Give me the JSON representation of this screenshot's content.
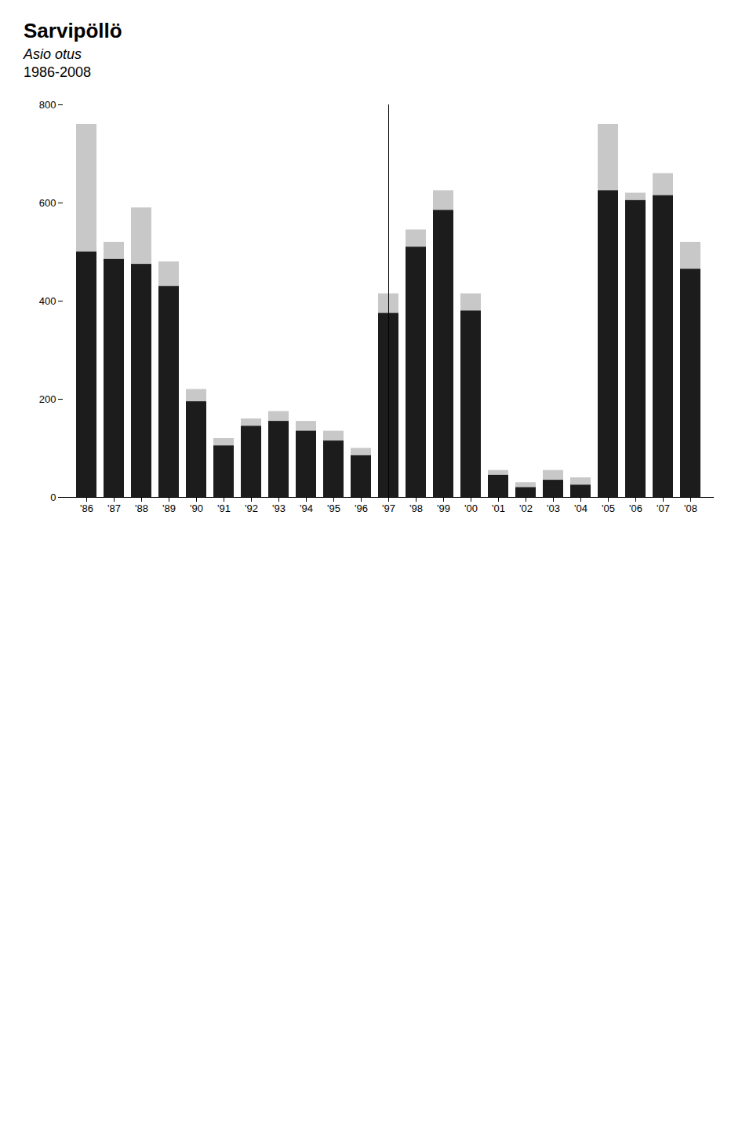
{
  "chart_data": {
    "type": "bar",
    "title": "Sarvipöllö",
    "subtitle": "Asio otus",
    "annotations": [
      "1986-2008"
    ],
    "categories": [
      "'86",
      "'87",
      "'88",
      "'89",
      "'90",
      "'91",
      "'92",
      "'93",
      "'94",
      "'95",
      "'96",
      "'97",
      "'98",
      "'99",
      "'00",
      "'01",
      "'02",
      "'03",
      "'04",
      "'05",
      "'06",
      "'07",
      "'08"
    ],
    "stacked": false,
    "series": [
      {
        "color": "#c8c8c8",
        "values": [
          760,
          520,
          590,
          480,
          220,
          120,
          160,
          175,
          155,
          135,
          100,
          415,
          545,
          625,
          415,
          55,
          30,
          55,
          40,
          760,
          620,
          660,
          520
        ]
      },
      {
        "color": "#1c1c1c",
        "values": [
          500,
          485,
          475,
          430,
          195,
          105,
          145,
          155,
          135,
          115,
          85,
          375,
          510,
          585,
          380,
          45,
          20,
          35,
          25,
          625,
          605,
          615,
          465
        ]
      }
    ],
    "ylim": [
      0,
      800
    ],
    "yticks": [
      0,
      200,
      400,
      600,
      800
    ],
    "grid": false
  }
}
